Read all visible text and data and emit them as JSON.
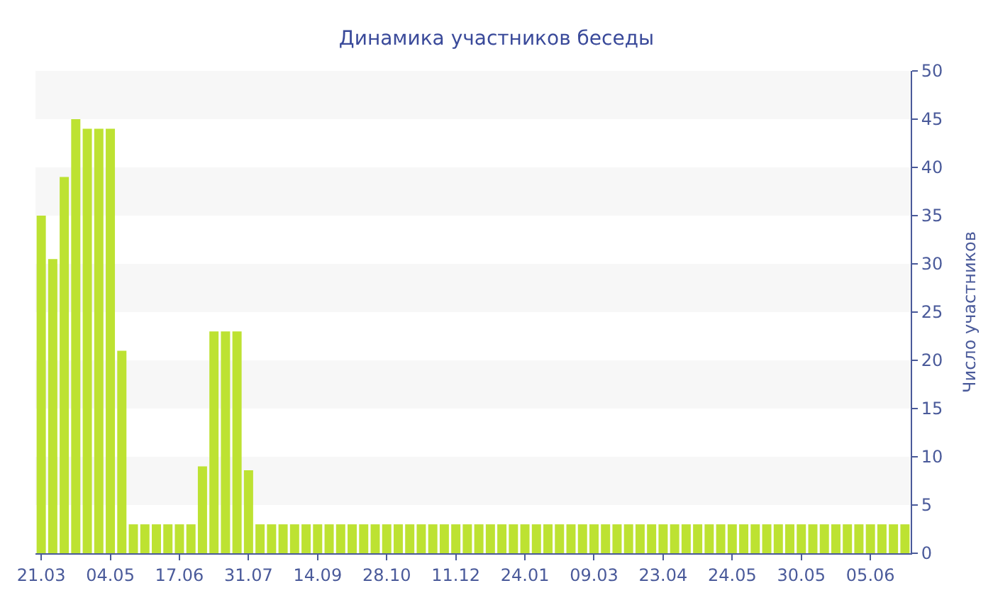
{
  "chart_data": {
    "type": "bar",
    "title": "Динамика участников беседы",
    "ylabel": "Число участников",
    "categories": [
      "21.03",
      null,
      null,
      null,
      null,
      null,
      "04.05",
      null,
      null,
      null,
      null,
      null,
      "17.06",
      null,
      null,
      null,
      null,
      null,
      "31.07",
      null,
      null,
      null,
      null,
      null,
      "14.09",
      null,
      null,
      null,
      null,
      null,
      "28.10",
      null,
      null,
      null,
      null,
      null,
      "11.12",
      null,
      null,
      null,
      null,
      null,
      "24.01",
      null,
      null,
      null,
      null,
      null,
      "09.03",
      null,
      null,
      null,
      null,
      null,
      "23.04",
      null,
      null,
      null,
      null,
      null,
      "24.05",
      null,
      null,
      null,
      null,
      null,
      "30.05",
      null,
      null,
      null,
      null,
      null,
      "05.06",
      null,
      null,
      null
    ],
    "values": [
      35,
      30.5,
      39,
      45,
      44,
      44,
      44,
      21,
      3,
      3,
      3,
      3,
      3,
      3,
      9,
      23,
      23,
      23,
      8.6,
      3,
      3,
      3,
      3,
      3,
      3,
      3,
      3,
      3,
      3,
      3,
      3,
      3,
      3,
      3,
      3,
      3,
      3,
      3,
      3,
      3,
      3,
      3,
      3,
      3,
      3,
      3,
      3,
      3,
      3,
      3,
      3,
      3,
      3,
      3,
      3,
      3,
      3,
      3,
      3,
      3,
      3,
      3,
      3,
      3,
      3,
      3,
      3,
      3,
      3,
      3,
      3,
      3,
      3,
      3,
      3,
      3
    ],
    "color": "#bde232",
    "ylim": [
      0,
      50
    ],
    "yticks": [
      0,
      5,
      10,
      15,
      20,
      25,
      30,
      35,
      40,
      45,
      50
    ],
    "bands": [
      {
        "axis": "y",
        "from": 5,
        "to": 10,
        "color": "#f7f7f7"
      },
      {
        "axis": "y",
        "from": 15,
        "to": 20,
        "color": "#f7f7f7"
      },
      {
        "axis": "y",
        "from": 25,
        "to": 30,
        "color": "#f7f7f7"
      },
      {
        "axis": "y",
        "from": 35,
        "to": 40,
        "color": "#f7f7f7"
      },
      {
        "axis": "y",
        "from": 45,
        "to": 50,
        "color": "#f7f7f7"
      }
    ]
  }
}
